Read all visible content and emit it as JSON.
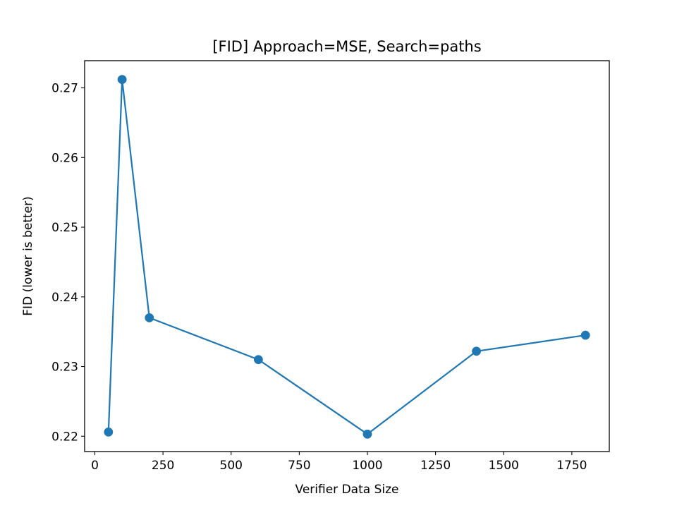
{
  "chart_data": {
    "type": "line",
    "title": "[FID] Approach=MSE, Search=paths",
    "xlabel": "Verifier Data Size",
    "ylabel": "FID (lower is better)",
    "xlim": [
      -37.5,
      1887.5
    ],
    "ylim": [
      0.2178,
      0.2739
    ],
    "xticks": [
      0,
      250,
      500,
      750,
      1000,
      1250,
      1500,
      1750
    ],
    "xtick_labels": [
      "0",
      "250",
      "500",
      "750",
      "1000",
      "1250",
      "1500",
      "1750"
    ],
    "yticks": [
      0.22,
      0.23,
      0.24,
      0.25,
      0.26,
      0.27
    ],
    "ytick_labels": [
      "0.22",
      "0.23",
      "0.24",
      "0.25",
      "0.26",
      "0.27"
    ],
    "grid": false,
    "legend": "none",
    "series": [
      {
        "x": [
          50,
          100,
          200,
          600,
          1000,
          1400,
          1800
        ],
        "values": [
          0.2206,
          0.2712,
          0.237,
          0.231,
          0.2203,
          0.2322,
          0.2345
        ],
        "color": "#1f77b4",
        "marker": "circle"
      }
    ]
  }
}
